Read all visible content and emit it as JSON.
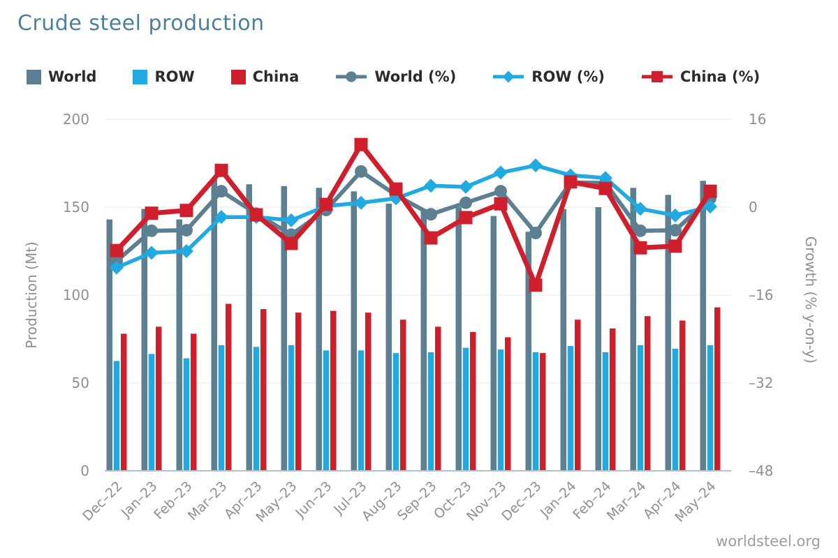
{
  "title": "Crude steel production",
  "footer": "worldsteel.org",
  "colors": {
    "world": "#5d7f92",
    "row": "#21a9e1",
    "china": "#cf1f2d",
    "grid": "#e7e7e7",
    "axis_line": "#aec3cf",
    "tick_text": "#8f8f8f",
    "title_text": "#4d7e9c",
    "legend_text": "#2b2b2b",
    "footer_text": "#9d9d9d"
  },
  "legend": {
    "items": [
      {
        "label": "World",
        "type": "bar",
        "color_key": "world"
      },
      {
        "label": "ROW",
        "type": "bar",
        "color_key": "row"
      },
      {
        "label": "China",
        "type": "bar",
        "color_key": "china"
      },
      {
        "label": "World (%)",
        "type": "line",
        "marker": "circle",
        "color_key": "world"
      },
      {
        "label": "ROW (%)",
        "type": "line",
        "marker": "diamond",
        "color_key": "row"
      },
      {
        "label": "China (%)",
        "type": "line",
        "marker": "square",
        "color_key": "china"
      }
    ]
  },
  "chart_data": {
    "type": "bar",
    "subtype": "grouped-bars-with-lines-dual-axis",
    "grid": "horizontal-only",
    "legend_position": "top",
    "categories": [
      "Dec–22",
      "Jan–23",
      "Feb–23",
      "Mar–23",
      "Apr–23",
      "May–23",
      "Jun–23",
      "Jul–23",
      "Aug–23",
      "Sep–23",
      "Oct–23",
      "Nov–23",
      "Dec–23",
      "Jan–24",
      "Feb–24",
      "Mar–24",
      "Apr–24",
      "May–24"
    ],
    "axes": {
      "left": {
        "label": "Production (Mt)",
        "ticks": [
          0,
          50,
          100,
          150,
          200
        ],
        "range": [
          0,
          200
        ]
      },
      "right": {
        "label": "Growth (% y-on-y)",
        "ticks": [
          16,
          0,
          -16,
          -32,
          -48
        ],
        "range": [
          -48,
          16
        ]
      }
    },
    "bar_series": [
      {
        "name": "World",
        "color_key": "world",
        "values": [
          143,
          149,
          143,
          166,
          163,
          162,
          161,
          159,
          152,
          149,
          150,
          145,
          136,
          149,
          150,
          161,
          157,
          165
        ]
      },
      {
        "name": "ROW",
        "color_key": "row",
        "values": [
          62.5,
          66.5,
          64,
          71.5,
          70.5,
          71.5,
          68.5,
          68.5,
          67,
          67.5,
          70,
          69,
          67.5,
          71,
          67.5,
          71.5,
          69.5,
          71.5
        ]
      },
      {
        "name": "China",
        "color_key": "china",
        "values": [
          78,
          82,
          78,
          95,
          92,
          90,
          91,
          90,
          86,
          82,
          79,
          76,
          67,
          86,
          81,
          88,
          85.5,
          93
        ]
      }
    ],
    "line_series": [
      {
        "name": "World (%)",
        "color_key": "world",
        "marker": "circle",
        "width": 6,
        "values": [
          -9.8,
          -4.3,
          -4.2,
          2.9,
          -1.2,
          -5.0,
          -0.5,
          6.5,
          2.2,
          -1.3,
          0.8,
          2.9,
          -4.7,
          4.5,
          4.4,
          -4.3,
          -4.2,
          1.6
        ]
      },
      {
        "name": "ROW (%)",
        "color_key": "row",
        "marker": "diamond",
        "width": 5.5,
        "values": [
          -11.0,
          -8.3,
          -8.0,
          -1.8,
          -1.8,
          -2.4,
          0.2,
          0.8,
          1.6,
          3.9,
          3.7,
          6.3,
          7.6,
          5.8,
          5.3,
          -0.3,
          -1.5,
          0.1
        ]
      },
      {
        "name": "China (%)",
        "color_key": "china",
        "marker": "square",
        "width": 7,
        "values": [
          -7.9,
          -1.1,
          -0.6,
          6.7,
          -1.4,
          -6.6,
          0.5,
          11.4,
          3.3,
          -5.6,
          -1.9,
          0.6,
          -14.2,
          4.6,
          3.4,
          -7.4,
          -7.1,
          2.9
        ]
      }
    ]
  }
}
